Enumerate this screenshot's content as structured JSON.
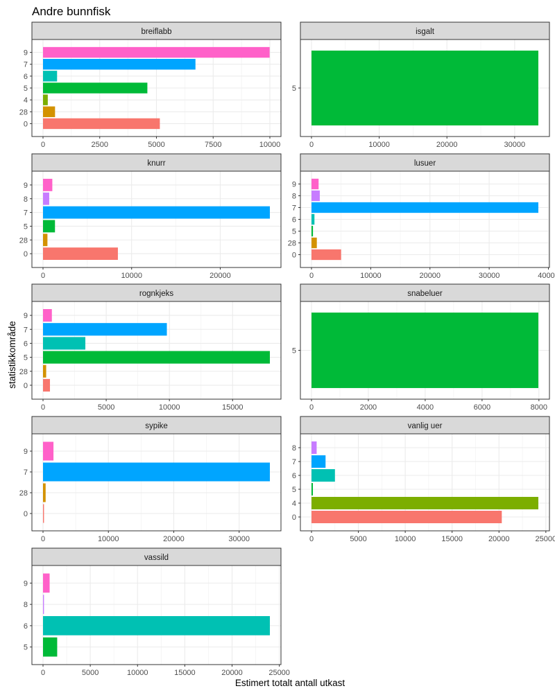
{
  "chart_data": {
    "type": "bar",
    "orientation": "horizontal",
    "title": "Andre bunnfisk",
    "xlabel": "Estimert totalt antall utkast",
    "ylabel": "statistikkområde",
    "legend": "none",
    "grid": true,
    "category_colors": {
      "0": "#F8766D",
      "28": "#D39200",
      "4": "#7CAE00",
      "5": "#00BA38",
      "6": "#00C1B3",
      "7": "#00A5FF",
      "8": "#C77CFF",
      "9": "#FF61C9"
    },
    "panels": [
      {
        "strip": "breiflabb",
        "categories": [
          "0",
          "28",
          "4",
          "5",
          "6",
          "7",
          "9"
        ],
        "values": [
          5150,
          530,
          210,
          4600,
          620,
          6720,
          9990
        ],
        "xlim": [
          0,
          10000
        ],
        "xticks": [
          0,
          2500,
          5000,
          7500,
          10000
        ],
        "xtick_labels": [
          "0",
          "2500",
          "5000",
          "7500",
          "10000"
        ]
      },
      {
        "strip": "isgalt",
        "categories": [
          "5"
        ],
        "values": [
          33500
        ],
        "xlim": [
          0,
          33500
        ],
        "xticks": [
          0,
          10000,
          20000,
          30000
        ],
        "xtick_labels": [
          "0",
          "10000",
          "20000",
          "30000"
        ]
      },
      {
        "strip": "knurr",
        "categories": [
          "0",
          "28",
          "5",
          "7",
          "8",
          "9"
        ],
        "values": [
          8450,
          500,
          1350,
          25600,
          700,
          1050
        ],
        "xlim": [
          0,
          25600
        ],
        "xticks": [
          0,
          10000,
          20000
        ],
        "xtick_labels": [
          "0",
          "10000",
          "20000"
        ]
      },
      {
        "strip": "lusuer",
        "categories": [
          "0",
          "28",
          "5",
          "6",
          "7",
          "8",
          "9"
        ],
        "values": [
          5000,
          900,
          250,
          500,
          38300,
          1400,
          1200
        ],
        "xlim": [
          0,
          38300
        ],
        "xticks": [
          0,
          10000,
          20000,
          30000,
          40000
        ],
        "xtick_labels": [
          "0",
          "10000",
          "20000",
          "30000",
          "40000"
        ]
      },
      {
        "strip": "rognkjeks",
        "categories": [
          "0",
          "28",
          "5",
          "6",
          "7",
          "9"
        ],
        "values": [
          550,
          250,
          17950,
          3350,
          9800,
          700
        ],
        "xlim": [
          0,
          17950
        ],
        "xticks": [
          0,
          5000,
          10000,
          15000
        ],
        "xtick_labels": [
          "0",
          "5000",
          "10000",
          "15000"
        ]
      },
      {
        "strip": "snabeluer",
        "categories": [
          "5"
        ],
        "values": [
          7980
        ],
        "xlim": [
          0,
          7980
        ],
        "xticks": [
          0,
          2000,
          4000,
          6000,
          8000
        ],
        "xtick_labels": [
          "0",
          "2000",
          "4000",
          "6000",
          "8000"
        ]
      },
      {
        "strip": "sypike",
        "categories": [
          "0",
          "28",
          "7",
          "9"
        ],
        "values": [
          150,
          400,
          34700,
          1600
        ],
        "xlim": [
          0,
          34700
        ],
        "xticks": [
          0,
          10000,
          20000,
          30000
        ],
        "xtick_labels": [
          "0",
          "10000",
          "20000",
          "30000"
        ]
      },
      {
        "strip": "vanlig uer",
        "categories": [
          "0",
          "4",
          "5",
          "6",
          "7",
          "8"
        ],
        "values": [
          20300,
          24200,
          150,
          2500,
          1500,
          550
        ],
        "xlim": [
          0,
          24200
        ],
        "xticks": [
          0,
          5000,
          10000,
          15000,
          20000,
          25000
        ],
        "xtick_labels": [
          "0",
          "5000",
          "10000",
          "15000",
          "20000",
          "25000"
        ]
      },
      {
        "strip": "vassild",
        "categories": [
          "5",
          "6",
          "8",
          "9"
        ],
        "values": [
          1500,
          24000,
          100,
          700
        ],
        "xlim": [
          0,
          24000
        ],
        "xticks": [
          0,
          5000,
          10000,
          15000,
          20000,
          25000
        ],
        "xtick_labels": [
          "0",
          "5000",
          "10000",
          "15000",
          "20000",
          "25000"
        ]
      }
    ]
  }
}
